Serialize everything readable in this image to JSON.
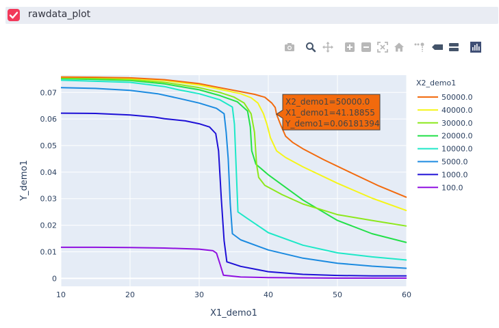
{
  "panel": {
    "title": "rawdata_plot",
    "checked": true
  },
  "modebar": {
    "buttons": [
      "camera-icon",
      "zoom-icon",
      "pan-icon",
      "zoom-in-icon",
      "zoom-out-icon",
      "autoscale-icon",
      "home-icon",
      "spike-lines-icon",
      "hover-closest-icon",
      "hover-compare-icon",
      "plotly-logo-icon"
    ]
  },
  "chart_data": {
    "type": "line",
    "xlabel": "X1_demo1",
    "ylabel": "Y_demo1",
    "xlim": [
      10,
      60
    ],
    "ylim": [
      -0.003,
      0.0765
    ],
    "xticks": [
      10,
      20,
      30,
      40,
      50,
      60
    ],
    "yticks": [
      0,
      0.01,
      0.02,
      0.03,
      0.04,
      0.05,
      0.06,
      0.07
    ],
    "ytick_labels": [
      "0",
      "0.01",
      "0.02",
      "0.03",
      "0.04",
      "0.05",
      "0.06",
      "0.07"
    ],
    "grid": true,
    "legend": {
      "title": "X2_demo1",
      "placement": "right"
    },
    "series": [
      {
        "name": "50000.0",
        "color": "#f26a0d",
        "points": [
          [
            10,
            0.0758
          ],
          [
            15,
            0.0757
          ],
          [
            20,
            0.0755
          ],
          [
            25,
            0.0748
          ],
          [
            30,
            0.0733
          ],
          [
            33,
            0.0718
          ],
          [
            36,
            0.0703
          ],
          [
            38,
            0.0693
          ],
          [
            39.5,
            0.0682
          ],
          [
            40.5,
            0.066
          ],
          [
            41,
            0.0643
          ],
          [
            41.19,
            0.0618
          ],
          [
            41.8,
            0.0577
          ],
          [
            42.5,
            0.0535
          ],
          [
            43.5,
            0.0512
          ],
          [
            45,
            0.0488
          ],
          [
            48,
            0.0447
          ],
          [
            52,
            0.0397
          ],
          [
            56,
            0.0348
          ],
          [
            60,
            0.0305
          ]
        ]
      },
      {
        "name": "40000.0",
        "color": "#f5f518",
        "points": [
          [
            10,
            0.0758
          ],
          [
            15,
            0.0757
          ],
          [
            20,
            0.0753
          ],
          [
            25,
            0.0745
          ],
          [
            30,
            0.0728
          ],
          [
            33,
            0.0712
          ],
          [
            36,
            0.0695
          ],
          [
            37.5,
            0.068
          ],
          [
            38.5,
            0.066
          ],
          [
            39.3,
            0.062
          ],
          [
            39.8,
            0.058
          ],
          [
            40.3,
            0.053
          ],
          [
            41.2,
            0.048
          ],
          [
            42.5,
            0.0455
          ],
          [
            45,
            0.042
          ],
          [
            50,
            0.0358
          ],
          [
            55,
            0.0302
          ],
          [
            60,
            0.0255
          ]
        ]
      },
      {
        "name": "30000.0",
        "color": "#8ce81a",
        "points": [
          [
            10,
            0.0755
          ],
          [
            15,
            0.0753
          ],
          [
            20,
            0.0749
          ],
          [
            25,
            0.0738
          ],
          [
            30,
            0.0718
          ],
          [
            33,
            0.07
          ],
          [
            35,
            0.0683
          ],
          [
            36.5,
            0.066
          ],
          [
            37.5,
            0.062
          ],
          [
            38,
            0.055
          ],
          [
            38.3,
            0.043
          ],
          [
            38.6,
            0.038
          ],
          [
            39.5,
            0.035
          ],
          [
            42,
            0.0315
          ],
          [
            45,
            0.028
          ],
          [
            50,
            0.024
          ],
          [
            55,
            0.0218
          ],
          [
            60,
            0.0197
          ]
        ]
      },
      {
        "name": "20000.0",
        "color": "#22e048",
        "points": [
          [
            10,
            0.0752
          ],
          [
            15,
            0.0749
          ],
          [
            20,
            0.0745
          ],
          [
            25,
            0.0732
          ],
          [
            30,
            0.071
          ],
          [
            33,
            0.0688
          ],
          [
            35.5,
            0.0665
          ],
          [
            37,
            0.063
          ],
          [
            37.4,
            0.057
          ],
          [
            37.6,
            0.048
          ],
          [
            38.2,
            0.043
          ],
          [
            40,
            0.039
          ],
          [
            45,
            0.0295
          ],
          [
            50,
            0.0218
          ],
          [
            55,
            0.0168
          ],
          [
            60,
            0.0135
          ]
        ]
      },
      {
        "name": "10000.0",
        "color": "#1ce8c7",
        "points": [
          [
            10,
            0.0746
          ],
          [
            15,
            0.0742
          ],
          [
            20,
            0.0738
          ],
          [
            25,
            0.0722
          ],
          [
            27,
            0.071
          ],
          [
            30,
            0.0695
          ],
          [
            33,
            0.0672
          ],
          [
            34.8,
            0.0645
          ],
          [
            35.1,
            0.058
          ],
          [
            35.3,
            0.045
          ],
          [
            35.6,
            0.025
          ],
          [
            37,
            0.0225
          ],
          [
            40,
            0.0172
          ],
          [
            45,
            0.0125
          ],
          [
            50,
            0.0096
          ],
          [
            55,
            0.0081
          ],
          [
            60,
            0.0069
          ]
        ]
      },
      {
        "name": "5000.0",
        "color": "#1a8ae0",
        "points": [
          [
            10,
            0.0718
          ],
          [
            15,
            0.0715
          ],
          [
            20,
            0.0708
          ],
          [
            24,
            0.0695
          ],
          [
            27,
            0.0678
          ],
          [
            30,
            0.066
          ],
          [
            32.5,
            0.064
          ],
          [
            33.6,
            0.062
          ],
          [
            33.9,
            0.055
          ],
          [
            34.2,
            0.045
          ],
          [
            34.5,
            0.028
          ],
          [
            34.8,
            0.0168
          ],
          [
            36,
            0.0145
          ],
          [
            40,
            0.0107
          ],
          [
            45,
            0.0076
          ],
          [
            50,
            0.0057
          ],
          [
            55,
            0.0046
          ],
          [
            60,
            0.0038
          ]
        ]
      },
      {
        "name": "1000.0",
        "color": "#1d0fd6",
        "points": [
          [
            10,
            0.0622
          ],
          [
            15,
            0.0621
          ],
          [
            20,
            0.0615
          ],
          [
            23.5,
            0.0607
          ],
          [
            25,
            0.0601
          ],
          [
            28,
            0.0593
          ],
          [
            30,
            0.0582
          ],
          [
            31.5,
            0.057
          ],
          [
            32.4,
            0.0545
          ],
          [
            32.8,
            0.048
          ],
          [
            33.2,
            0.03
          ],
          [
            33.6,
            0.0142
          ],
          [
            34,
            0.0062
          ],
          [
            36,
            0.0045
          ],
          [
            40,
            0.0025
          ],
          [
            45,
            0.0015
          ],
          [
            50,
            0.0011
          ],
          [
            55,
            0.0009
          ],
          [
            60,
            0.0009
          ]
        ]
      },
      {
        "name": "100.0",
        "color": "#8f0fe0",
        "points": [
          [
            10,
            0.0117
          ],
          [
            15,
            0.0117
          ],
          [
            20,
            0.0116
          ],
          [
            25,
            0.0114
          ],
          [
            30,
            0.011
          ],
          [
            32,
            0.0104
          ],
          [
            32.5,
            0.0095
          ],
          [
            33,
            0.0055
          ],
          [
            33.5,
            0.0012
          ],
          [
            36,
            0.0005
          ],
          [
            40,
            0.0003
          ],
          [
            45,
            0.0002
          ],
          [
            50,
            0.0001
          ],
          [
            60,
            0.0001
          ]
        ]
      }
    ],
    "hover": {
      "series": "50000.0",
      "x": 41.18855,
      "y": 0.06181394,
      "lines": [
        "X2_demo1=50000.0",
        "X1_demo1=41.18855",
        "Y_demo1=0.06181394"
      ],
      "bg": "#f26a0d"
    }
  }
}
